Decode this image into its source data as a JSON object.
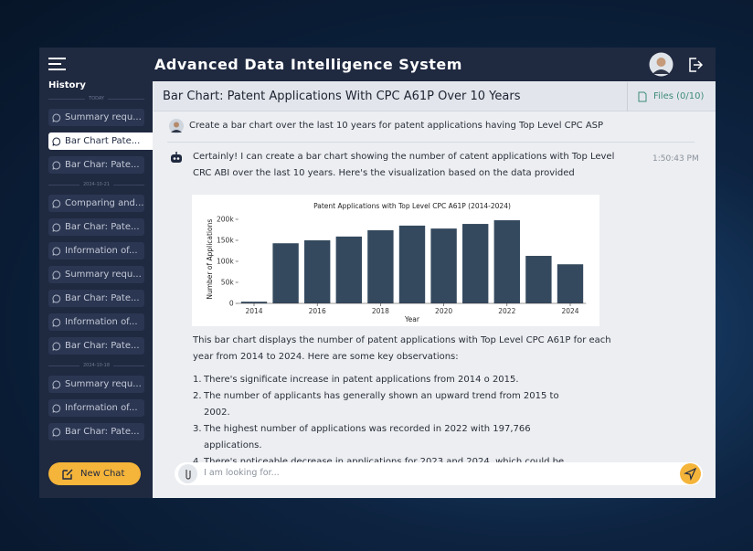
{
  "app": {
    "title": "Advanced Data Intelligence System"
  },
  "sidebar": {
    "history_label": "History",
    "new_chat": "New Chat",
    "groups": [
      {
        "date": "TODAY",
        "items": [
          "Summary requ...",
          "Bar Chart Pate...",
          "Bar Char: Pate..."
        ]
      },
      {
        "date": "2024-10-21",
        "items": [
          "Comparing and...",
          "Bar Char: Pate...",
          "Information of...",
          "Summary requ...",
          "Bar Char: Pate...",
          "Information of...",
          "Bar Char: Pate..."
        ]
      },
      {
        "date": "2024-10-18",
        "items": [
          "Summary requ...",
          "Information of...",
          "Bar Char: Pate..."
        ]
      }
    ]
  },
  "chat": {
    "title": "Bar Chart: Patent Applications With CPC A61P Over 10 Years",
    "files": "Files (0/10)",
    "user_message": "Create a bar chart over the last 10 years for patent applications having Top Level CPC ASP",
    "bot_intro": [
      "Certainly! I can create a bar chart showing the number of catent applications with Top Level",
      "CRC ABI over the last 10 years. Here's the visualization based on the data provided"
    ],
    "time": "1:50:43 PM",
    "chart": {
      "type": "bar",
      "title": "Patent Applications with Top Level CPC A61P (2014-2024)",
      "x_label": "Year",
      "y_label": "Number of Applications",
      "color": "#34495e",
      "x": [
        2014,
        2015,
        2016,
        2017,
        2018,
        2019,
        2020,
        2021,
        2022,
        2023,
        2024
      ],
      "values": [
        4000,
        143000,
        150000,
        159000,
        174000,
        185000,
        178000,
        189000,
        197766,
        113000,
        93000
      ],
      "xlim": [
        2013.5,
        2024.5
      ],
      "xticks": [
        2014,
        2016,
        2018,
        2020,
        2022,
        2024
      ],
      "ylim": [
        0,
        210000
      ],
      "yticks": [
        0,
        {
          "value": 50000,
          "label": "50k"
        },
        {
          "value": 100000,
          "label": "100k"
        },
        {
          "value": 150000,
          "label": "150k"
        },
        {
          "value": 200000,
          "label": "200k"
        }
      ]
    },
    "summary": [
      "This bar chart displays the number of patent applications with Top Level CPC A61P for each",
      "year from 2014 to 2024. Here are some key observations:"
    ],
    "observations": [
      {
        "num": "1.",
        "text": "There's significate increase in patent applications from 2014 o 2015."
      },
      {
        "num": "2.",
        "text": "The number of applicants has generally shown an upward trend from 2015 to 2002."
      },
      {
        "num": "3.",
        "text": "The highest number of applications was recorded in 2022 with 197,766 applications."
      },
      {
        "num": "4.",
        "text": "There's noticeable decrease in applications for 2023 and 2024, which could be an to incomplete data for recent years or other factors affecting patent filling."
      }
    ],
    "input_placeholder": "I am looking for..."
  }
}
